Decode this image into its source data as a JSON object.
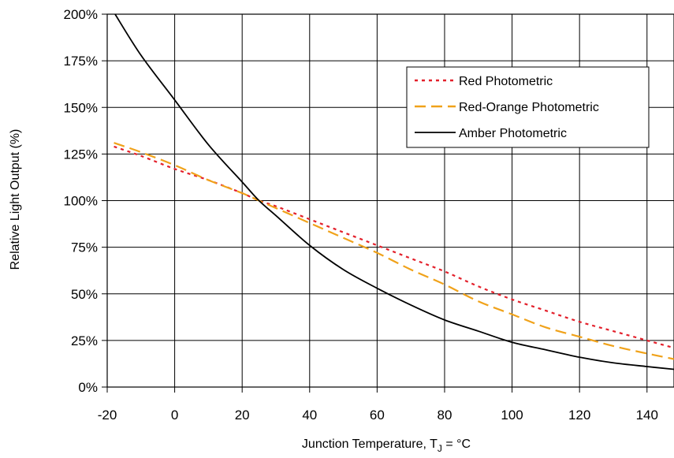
{
  "chart_data": {
    "type": "line",
    "xlabel": "Junction Temperature, T",
    "xlabel_sub": "J",
    "xlabel_suffix": " = °C",
    "ylabel": "Relative Light Output (%)",
    "xlim": [
      -20,
      148
    ],
    "ylim": [
      0,
      200
    ],
    "x_ticks": [
      -20,
      0,
      20,
      40,
      60,
      80,
      100,
      120,
      140
    ],
    "x_tick_labels": [
      "-20",
      "0",
      "20",
      "40",
      "60",
      "80",
      "100",
      "120",
      "140"
    ],
    "y_ticks": [
      0,
      25,
      50,
      75,
      100,
      125,
      150,
      175,
      200
    ],
    "y_tick_labels": [
      "0%",
      "25%",
      "50%",
      "75%",
      "100%",
      "125%",
      "150%",
      "175%",
      "200%"
    ],
    "grid": true,
    "legend_position": "top-right",
    "series": [
      {
        "name": "Red Photometric",
        "color": "#e3202b",
        "style": "dotted",
        "x": [
          -18,
          -10,
          0,
          10,
          20,
          25,
          30,
          40,
          50,
          60,
          70,
          80,
          90,
          100,
          110,
          120,
          130,
          140,
          148
        ],
        "y": [
          129,
          124,
          117,
          111,
          104,
          100,
          97,
          90,
          83,
          76,
          69,
          62,
          54,
          47,
          41,
          35,
          30,
          25,
          21
        ]
      },
      {
        "name": "Red-Orange Photometric",
        "color": "#f0a21a",
        "style": "dashed",
        "x": [
          -18,
          -10,
          0,
          10,
          20,
          25,
          30,
          40,
          50,
          60,
          70,
          80,
          90,
          100,
          110,
          120,
          130,
          140,
          148
        ],
        "y": [
          131,
          126,
          119,
          111,
          104,
          100,
          96,
          88,
          80,
          72,
          63,
          55,
          46,
          39,
          32,
          27,
          22,
          18,
          15
        ]
      },
      {
        "name": "Amber Photometric",
        "color": "#000000",
        "style": "solid",
        "x": [
          -18,
          -10,
          0,
          10,
          20,
          25,
          30,
          40,
          50,
          60,
          70,
          80,
          90,
          100,
          110,
          120,
          130,
          140,
          148
        ],
        "y": [
          201,
          178,
          154,
          130,
          110,
          100,
          92,
          76,
          63,
          53,
          44,
          36,
          30,
          24,
          20,
          16,
          13,
          11,
          9.5
        ]
      }
    ]
  }
}
